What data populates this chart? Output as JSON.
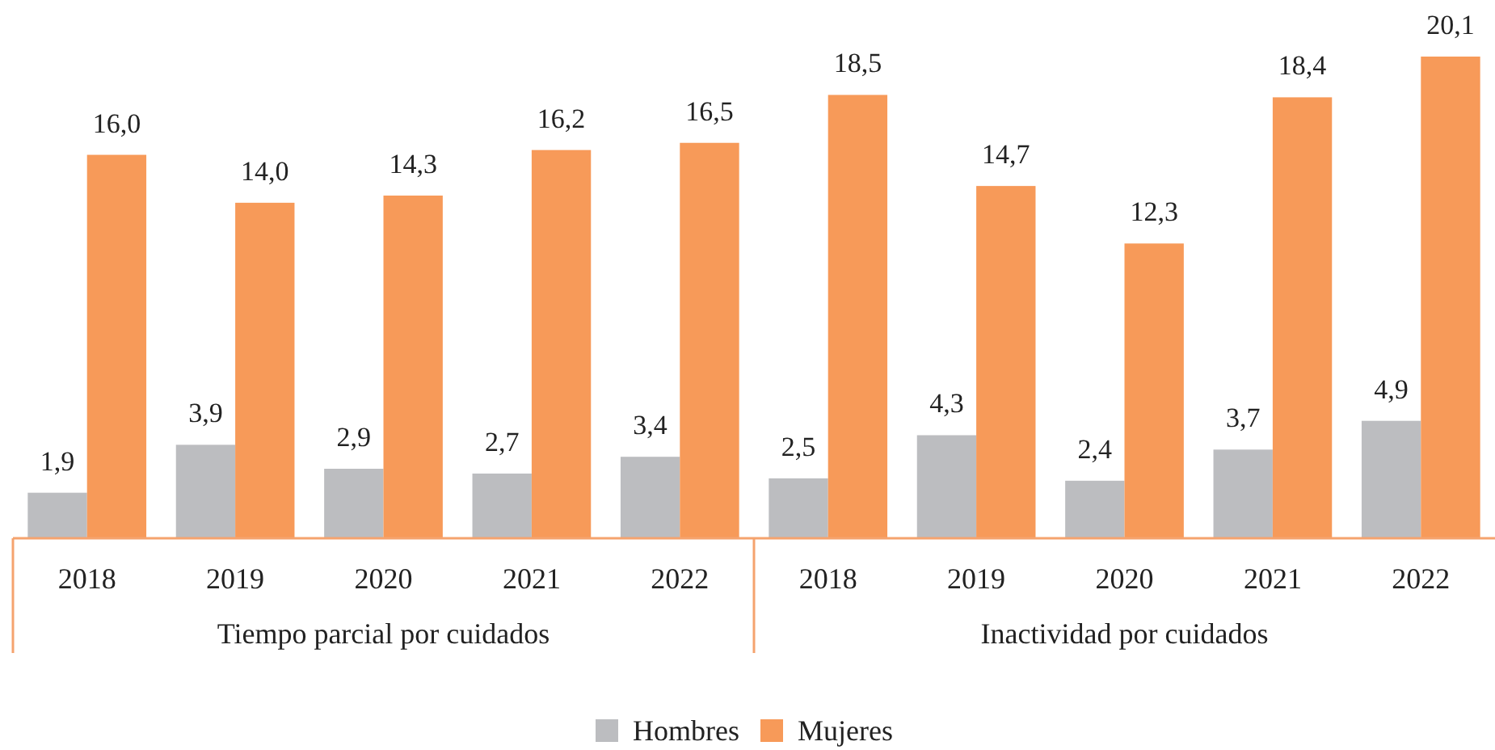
{
  "chart_data": [
    {
      "type": "bar",
      "xlabel": "Tiempo parcial por cuidados",
      "categories": [
        "2018",
        "2019",
        "2020",
        "2021",
        "2022"
      ],
      "tick_labels": "x",
      "legend": "bottom",
      "series": [
        {
          "name": "Hombres",
          "color": "#bcbdc0",
          "values": [
            1.9,
            3.9,
            2.9,
            2.7,
            3.4
          ],
          "value_labels": [
            "1,9",
            "3,9",
            "2,9",
            "2,7",
            "3,4"
          ]
        },
        {
          "name": "Mujeres",
          "color": "#f79a59",
          "values": [
            16.0,
            14.0,
            14.3,
            16.2,
            16.5
          ],
          "value_labels": [
            "16,0",
            "14,0",
            "14,3",
            "16,2",
            "16,5"
          ]
        }
      ]
    },
    {
      "type": "bar",
      "xlabel": "Inactividad por cuidados",
      "categories": [
        "2018",
        "2019",
        "2020",
        "2021",
        "2022"
      ],
      "tick_labels": "x",
      "series": [
        {
          "color": "#bcbdc0",
          "values": [
            2.5,
            4.3,
            2.4,
            3.7,
            4.9
          ],
          "value_labels": [
            "2,5",
            "4,3",
            "2,4",
            "3,7",
            "4,9"
          ]
        },
        {
          "color": "#f79a59",
          "values": [
            18.5,
            14.7,
            12.3,
            18.4,
            20.1
          ],
          "value_labels": [
            "18,5",
            "14,7",
            "12,3",
            "18,4",
            "20,1"
          ]
        }
      ]
    }
  ]
}
